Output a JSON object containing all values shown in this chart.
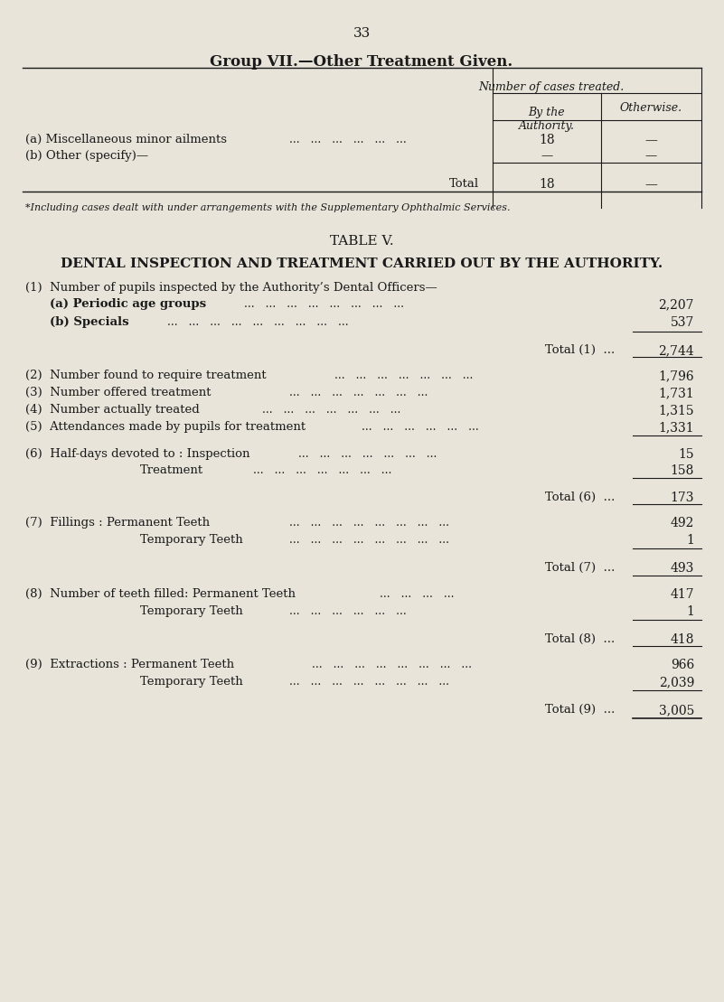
{
  "page_number": "33",
  "bg_color": "#e8e4da",
  "text_color": "#1a1a1a",
  "group_title": "Group VII.—Other Treatment Given.",
  "table_header_main": "Number of cases treated.",
  "table_col1": "By the\nAuthority.",
  "table_col2": "Otherwise.",
  "row_a_label": "(a) Miscellaneous minor ailments",
  "row_a_dots": "...   ...   ...   ...   ...   ...",
  "row_a_val1": "18",
  "row_a_val2": "—",
  "row_b_label": "(b) Other (specify)—",
  "row_b_val1": "—",
  "row_b_val2": "—",
  "total_label": "Total",
  "total_val1": "18",
  "total_val2": "—",
  "footnote": "*Including cases dealt with under arrangements with the Supplementary Ophthalmic Services.",
  "table_v_title": "TABLE V.",
  "dental_title": "DENTAL INSPECTION AND TREATMENT CARRIED OUT BY THE AUTHORITY.",
  "item1_label": "(1)  Number of pupils inspected by the Authority’s Dental Officers—",
  "item1a_label": "(a) Periodic age groups",
  "item1a_dots": "...   ...   ...   ...   ...   ...   ...   ...",
  "item1a_val": "2,207",
  "item1b_label": "(b) Specials",
  "item1b_dots": "...   ...   ...   ...   ...   ...   ...   ...   ...",
  "item1b_val": "537",
  "total1_label": "Total (1)  ...",
  "total1_val": "2,744",
  "item2_label": "(2)  Number found to require treatment",
  "item2_dots": "...   ...   ...   ...   ...   ...   ...",
  "item2_val": "1,796",
  "item3_label": "(3)  Number offered treatment",
  "item3_dots": "...   ...   ...   ...   ...   ...   ...",
  "item3_val": "1,731",
  "item4_label": "(4)  Number actually treated",
  "item4_dots": "...   ...   ...   ...   ...   ...   ...",
  "item4_val": "1,315",
  "item5_label": "(5)  Attendances made by pupils for treatment",
  "item5_dots": "...   ...   ...   ...   ...   ...",
  "item5_val": "1,331",
  "item6_label": "(6)  Half-days devoted to : Inspection",
  "item6a_dots": "...   ...   ...   ...   ...   ...   ...",
  "item6a_val": "15",
  "item6b_label": "Treatment",
  "item6b_dots": "...   ...   ...   ...   ...   ...   ...",
  "item6b_val": "158",
  "total6_label": "Total (6)  ...",
  "total6_val": "173",
  "item7_label": "(7)  Fillings : Permanent Teeth",
  "item7a_dots": "...   ...   ...   ...   ...   ...   ...   ...",
  "item7a_val": "492",
  "item7b_label": "Temporary Teeth",
  "item7b_dots": "...   ...   ...   ...   ...   ...   ...   ...",
  "item7b_val": "1",
  "total7_label": "Total (7)  ...",
  "total7_val": "493",
  "item8_label": "(8)  Number of teeth filled: Permanent Teeth",
  "item8a_dots": "...   ...   ...   ...",
  "item8a_val": "417",
  "item8b_label": "Temporary Teeth",
  "item8b_dots": "...   ...   ...   ...   ...   ...",
  "item8b_val": "1",
  "total8_label": "Total (8)  ...",
  "total8_val": "418",
  "item9_label": "(9)  Extractions : Permanent Teeth",
  "item9a_dots": "...   ...   ...   ...   ...   ...   ...   ...",
  "item9a_val": "966",
  "item9b_label": "Temporary Teeth",
  "item9b_dots": "...   ...   ...   ...   ...   ...   ...   ...",
  "item9b_val": "2,039",
  "total9_label": "Total (9)  ...",
  "total9_val": "3,005"
}
